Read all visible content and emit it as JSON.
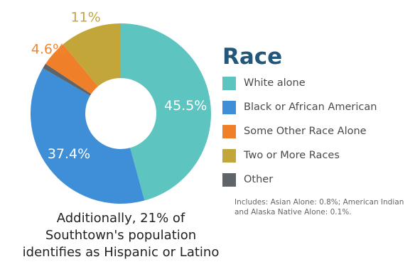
{
  "chart_data": {
    "type": "pie",
    "style": "donut",
    "title": "Race",
    "slices": [
      {
        "label": "White alone",
        "value": 45.5,
        "value_label": "45.5%",
        "color": "#5dc4c0",
        "label_color": "#ffffff"
      },
      {
        "label": "Black or African American",
        "value": 37.4,
        "value_label": "37.4%",
        "color": "#3f8ed8",
        "label_color": "#ffffff"
      },
      {
        "label": "Other",
        "value": 0.9,
        "value_label": "",
        "color": "#5f6469",
        "label_color": "#ffffff"
      },
      {
        "label": "Some Other Race Alone",
        "value": 4.6,
        "value_label": "4.6%",
        "color": "#f07f2a",
        "label_color": "#f0882f"
      },
      {
        "label": "Two or More Races",
        "value": 11.0,
        "value_label": "11%",
        "color": "#c3a63a",
        "label_color": "#c3a63a"
      }
    ],
    "legend": [
      {
        "label": "White alone",
        "color": "#5dc4c0"
      },
      {
        "label": "Black or African American",
        "color": "#3f8ed8"
      },
      {
        "label": "Some Other Race Alone",
        "color": "#f07f2a"
      },
      {
        "label": "Two or More Races",
        "color": "#c3a63a"
      },
      {
        "label": "Other",
        "color": "#5f6469"
      }
    ],
    "legend_note": "Includes: Asian Alone: 0.8%; American Indian and Alaska Native Alone: 0.1%.",
    "legend_position": "right"
  },
  "footnote": {
    "line1": "Additionally, 21% of",
    "line2": "Southtown's population",
    "line3": "identifies as Hispanic or Latino"
  }
}
